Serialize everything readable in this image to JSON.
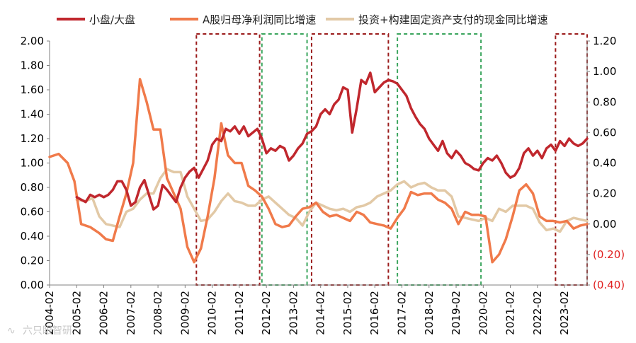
{
  "chart_data": {
    "type": "line",
    "title": "",
    "xlabel": "",
    "ylabel_left": "",
    "ylabel_right": "",
    "x_start": "2004-02",
    "x_end": "2023-12",
    "x_tick_labels": [
      "2004-02",
      "2005-02",
      "2006-02",
      "2007-02",
      "2008-02",
      "2009-02",
      "2010-02",
      "2011-02",
      "2012-02",
      "2013-02",
      "2014-02",
      "2015-02",
      "2016-02",
      "2017-02",
      "2018-02",
      "2019-02",
      "2020-02",
      "2021-02",
      "2022-02",
      "2023-02"
    ],
    "ylim_left": [
      0,
      2.0
    ],
    "yticks_left": [
      "0.00",
      "0.20",
      "0.40",
      "0.60",
      "0.80",
      "1.00",
      "1.20",
      "1.40",
      "1.60",
      "1.80",
      "2.00"
    ],
    "ylim_right": [
      -0.4,
      1.2
    ],
    "yticks_right": [
      "(0.40)",
      "(0.20)",
      "0.00",
      "0.20",
      "0.40",
      "0.60",
      "0.80",
      "1.00",
      "1.20"
    ],
    "legend_position": "top",
    "grid": false,
    "series": [
      {
        "name": "小盘/大盘",
        "axis": "left",
        "color": "#c0272d",
        "points": [
          [
            "2005-02",
            0.72
          ],
          [
            "2005-04",
            0.7
          ],
          [
            "2005-06",
            0.68
          ],
          [
            "2005-08",
            0.74
          ],
          [
            "2005-10",
            0.72
          ],
          [
            "2005-12",
            0.74
          ],
          [
            "2006-02",
            0.72
          ],
          [
            "2006-04",
            0.74
          ],
          [
            "2006-06",
            0.78
          ],
          [
            "2006-08",
            0.85
          ],
          [
            "2006-10",
            0.85
          ],
          [
            "2006-12",
            0.78
          ],
          [
            "2007-02",
            0.65
          ],
          [
            "2007-04",
            0.68
          ],
          [
            "2007-06",
            0.8
          ],
          [
            "2007-08",
            0.86
          ],
          [
            "2007-10",
            0.74
          ],
          [
            "2007-12",
            0.62
          ],
          [
            "2008-02",
            0.65
          ],
          [
            "2008-04",
            0.82
          ],
          [
            "2008-06",
            0.78
          ],
          [
            "2008-08",
            0.73
          ],
          [
            "2008-10",
            0.68
          ],
          [
            "2008-12",
            0.8
          ],
          [
            "2009-02",
            0.88
          ],
          [
            "2009-04",
            0.93
          ],
          [
            "2009-06",
            0.96
          ],
          [
            "2009-08",
            0.88
          ],
          [
            "2009-10",
            0.95
          ],
          [
            "2009-12",
            1.02
          ],
          [
            "2010-02",
            1.15
          ],
          [
            "2010-04",
            1.2
          ],
          [
            "2010-06",
            1.18
          ],
          [
            "2010-08",
            1.28
          ],
          [
            "2010-10",
            1.26
          ],
          [
            "2010-12",
            1.3
          ],
          [
            "2011-02",
            1.24
          ],
          [
            "2011-04",
            1.3
          ],
          [
            "2011-06",
            1.22
          ],
          [
            "2011-08",
            1.25
          ],
          [
            "2011-10",
            1.28
          ],
          [
            "2011-12",
            1.2
          ],
          [
            "2012-02",
            1.08
          ],
          [
            "2012-04",
            1.12
          ],
          [
            "2012-06",
            1.1
          ],
          [
            "2012-08",
            1.14
          ],
          [
            "2012-10",
            1.12
          ],
          [
            "2012-12",
            1.02
          ],
          [
            "2013-02",
            1.06
          ],
          [
            "2013-04",
            1.12
          ],
          [
            "2013-06",
            1.16
          ],
          [
            "2013-08",
            1.24
          ],
          [
            "2013-10",
            1.26
          ],
          [
            "2013-12",
            1.3
          ],
          [
            "2014-02",
            1.4
          ],
          [
            "2014-04",
            1.44
          ],
          [
            "2014-06",
            1.4
          ],
          [
            "2014-08",
            1.48
          ],
          [
            "2014-10",
            1.52
          ],
          [
            "2014-12",
            1.62
          ],
          [
            "2015-02",
            1.6
          ],
          [
            "2015-04",
            1.25
          ],
          [
            "2015-06",
            1.45
          ],
          [
            "2015-08",
            1.68
          ],
          [
            "2015-10",
            1.65
          ],
          [
            "2015-12",
            1.74
          ],
          [
            "2016-02",
            1.58
          ],
          [
            "2016-04",
            1.62
          ],
          [
            "2016-06",
            1.66
          ],
          [
            "2016-08",
            1.68
          ],
          [
            "2016-10",
            1.67
          ],
          [
            "2016-12",
            1.65
          ],
          [
            "2017-02",
            1.6
          ],
          [
            "2017-04",
            1.55
          ],
          [
            "2017-06",
            1.45
          ],
          [
            "2017-08",
            1.38
          ],
          [
            "2017-10",
            1.32
          ],
          [
            "2017-12",
            1.28
          ],
          [
            "2018-02",
            1.2
          ],
          [
            "2018-04",
            1.15
          ],
          [
            "2018-06",
            1.1
          ],
          [
            "2018-08",
            1.18
          ],
          [
            "2018-10",
            1.08
          ],
          [
            "2018-12",
            1.04
          ],
          [
            "2019-02",
            1.1
          ],
          [
            "2019-04",
            1.06
          ],
          [
            "2019-06",
            1.0
          ],
          [
            "2019-08",
            0.98
          ],
          [
            "2019-10",
            0.95
          ],
          [
            "2019-12",
            0.94
          ],
          [
            "2020-02",
            1.0
          ],
          [
            "2020-04",
            1.04
          ],
          [
            "2020-06",
            1.02
          ],
          [
            "2020-08",
            1.06
          ],
          [
            "2020-10",
            1.0
          ],
          [
            "2020-12",
            0.92
          ],
          [
            "2021-02",
            0.88
          ],
          [
            "2021-04",
            0.9
          ],
          [
            "2021-06",
            0.96
          ],
          [
            "2021-08",
            1.08
          ],
          [
            "2021-10",
            1.12
          ],
          [
            "2021-12",
            1.06
          ],
          [
            "2022-02",
            1.1
          ],
          [
            "2022-04",
            1.04
          ],
          [
            "2022-06",
            1.12
          ],
          [
            "2022-08",
            1.15
          ],
          [
            "2022-10",
            1.1
          ],
          [
            "2022-12",
            1.18
          ],
          [
            "2023-02",
            1.14
          ],
          [
            "2023-04",
            1.2
          ],
          [
            "2023-06",
            1.16
          ],
          [
            "2023-08",
            1.14
          ],
          [
            "2023-10",
            1.16
          ],
          [
            "2023-12",
            1.2
          ]
        ]
      },
      {
        "name": "A股归母净利润同比增速",
        "axis": "right",
        "color": "#f07a4a",
        "points": [
          [
            "2004-02",
            0.44
          ],
          [
            "2004-06",
            0.46
          ],
          [
            "2004-10",
            0.4
          ],
          [
            "2005-01",
            0.28
          ],
          [
            "2005-04",
            0.0
          ],
          [
            "2005-08",
            -0.02
          ],
          [
            "2005-12",
            -0.06
          ],
          [
            "2006-03",
            -0.1
          ],
          [
            "2006-06",
            -0.11
          ],
          [
            "2006-09",
            0.05
          ],
          [
            "2006-12",
            0.2
          ],
          [
            "2007-03",
            0.4
          ],
          [
            "2007-06",
            0.95
          ],
          [
            "2007-09",
            0.8
          ],
          [
            "2007-12",
            0.62
          ],
          [
            "2008-03",
            0.62
          ],
          [
            "2008-06",
            0.3
          ],
          [
            "2008-09",
            0.2
          ],
          [
            "2008-12",
            0.1
          ],
          [
            "2009-03",
            -0.15
          ],
          [
            "2009-06",
            -0.25
          ],
          [
            "2009-09",
            -0.16
          ],
          [
            "2009-12",
            0.05
          ],
          [
            "2010-03",
            0.3
          ],
          [
            "2010-06",
            0.66
          ],
          [
            "2010-09",
            0.45
          ],
          [
            "2010-12",
            0.4
          ],
          [
            "2011-03",
            0.4
          ],
          [
            "2011-06",
            0.25
          ],
          [
            "2011-09",
            0.22
          ],
          [
            "2011-12",
            0.18
          ],
          [
            "2012-03",
            0.1
          ],
          [
            "2012-06",
            0.0
          ],
          [
            "2012-09",
            -0.02
          ],
          [
            "2012-12",
            -0.01
          ],
          [
            "2013-03",
            0.05
          ],
          [
            "2013-06",
            0.1
          ],
          [
            "2013-09",
            0.11
          ],
          [
            "2013-12",
            0.14
          ],
          [
            "2014-03",
            0.08
          ],
          [
            "2014-06",
            0.05
          ],
          [
            "2014-09",
            0.06
          ],
          [
            "2014-12",
            0.04
          ],
          [
            "2015-03",
            0.02
          ],
          [
            "2015-06",
            0.08
          ],
          [
            "2015-09",
            0.06
          ],
          [
            "2015-12",
            0.01
          ],
          [
            "2016-03",
            0.0
          ],
          [
            "2016-06",
            -0.01
          ],
          [
            "2016-09",
            -0.03
          ],
          [
            "2016-12",
            0.04
          ],
          [
            "2017-03",
            0.1
          ],
          [
            "2017-06",
            0.21
          ],
          [
            "2017-09",
            0.19
          ],
          [
            "2017-12",
            0.2
          ],
          [
            "2018-03",
            0.2
          ],
          [
            "2018-06",
            0.16
          ],
          [
            "2018-09",
            0.14
          ],
          [
            "2018-12",
            0.1
          ],
          [
            "2019-03",
            0.0
          ],
          [
            "2019-06",
            0.08
          ],
          [
            "2019-09",
            0.06
          ],
          [
            "2019-12",
            0.06
          ],
          [
            "2020-03",
            0.05
          ],
          [
            "2020-06",
            -0.25
          ],
          [
            "2020-09",
            -0.2
          ],
          [
            "2020-12",
            -0.1
          ],
          [
            "2021-03",
            0.05
          ],
          [
            "2021-06",
            0.22
          ],
          [
            "2021-09",
            0.26
          ],
          [
            "2021-12",
            0.2
          ],
          [
            "2022-03",
            0.05
          ],
          [
            "2022-06",
            0.02
          ],
          [
            "2022-09",
            0.02
          ],
          [
            "2022-12",
            0.01
          ],
          [
            "2023-03",
            0.02
          ],
          [
            "2023-06",
            -0.03
          ],
          [
            "2023-09",
            -0.01
          ],
          [
            "2023-12",
            0.0
          ]
        ]
      },
      {
        "name": "投资+构建固定资产支付的现金同比增速",
        "axis": "right",
        "color": "#e2c9a6",
        "points": [
          [
            "2005-02",
            0.16
          ],
          [
            "2005-06",
            0.15
          ],
          [
            "2005-09",
            0.17
          ],
          [
            "2005-12",
            0.05
          ],
          [
            "2006-03",
            0.0
          ],
          [
            "2006-06",
            -0.01
          ],
          [
            "2006-09",
            -0.02
          ],
          [
            "2006-12",
            0.08
          ],
          [
            "2007-03",
            0.1
          ],
          [
            "2007-06",
            0.16
          ],
          [
            "2007-09",
            0.2
          ],
          [
            "2007-12",
            0.2
          ],
          [
            "2008-03",
            0.3
          ],
          [
            "2008-06",
            0.36
          ],
          [
            "2008-09",
            0.34
          ],
          [
            "2008-12",
            0.34
          ],
          [
            "2009-03",
            0.18
          ],
          [
            "2009-06",
            0.1
          ],
          [
            "2009-09",
            0.02
          ],
          [
            "2009-12",
            0.03
          ],
          [
            "2010-03",
            0.08
          ],
          [
            "2010-06",
            0.15
          ],
          [
            "2010-09",
            0.2
          ],
          [
            "2010-12",
            0.15
          ],
          [
            "2011-03",
            0.14
          ],
          [
            "2011-06",
            0.12
          ],
          [
            "2011-09",
            0.12
          ],
          [
            "2011-12",
            0.16
          ],
          [
            "2012-03",
            0.18
          ],
          [
            "2012-06",
            0.14
          ],
          [
            "2012-09",
            0.1
          ],
          [
            "2012-12",
            0.06
          ],
          [
            "2013-03",
            0.04
          ],
          [
            "2013-06",
            -0.01
          ],
          [
            "2013-09",
            0.08
          ],
          [
            "2013-12",
            0.14
          ],
          [
            "2014-03",
            0.12
          ],
          [
            "2014-06",
            0.1
          ],
          [
            "2014-09",
            0.09
          ],
          [
            "2014-12",
            0.1
          ],
          [
            "2015-03",
            0.08
          ],
          [
            "2015-06",
            0.11
          ],
          [
            "2015-09",
            0.12
          ],
          [
            "2015-12",
            0.14
          ],
          [
            "2016-03",
            0.18
          ],
          [
            "2016-06",
            0.2
          ],
          [
            "2016-09",
            0.22
          ],
          [
            "2016-12",
            0.26
          ],
          [
            "2017-03",
            0.28
          ],
          [
            "2017-06",
            0.24
          ],
          [
            "2017-09",
            0.26
          ],
          [
            "2017-12",
            0.27
          ],
          [
            "2018-03",
            0.24
          ],
          [
            "2018-06",
            0.22
          ],
          [
            "2018-09",
            0.22
          ],
          [
            "2018-12",
            0.18
          ],
          [
            "2019-03",
            0.05
          ],
          [
            "2019-06",
            0.04
          ],
          [
            "2019-09",
            0.03
          ],
          [
            "2019-12",
            0.02
          ],
          [
            "2020-03",
            0.04
          ],
          [
            "2020-06",
            0.02
          ],
          [
            "2020-09",
            0.1
          ],
          [
            "2020-12",
            0.08
          ],
          [
            "2021-03",
            0.12
          ],
          [
            "2021-06",
            0.12
          ],
          [
            "2021-09",
            0.12
          ],
          [
            "2021-12",
            0.1
          ],
          [
            "2022-03",
            0.01
          ],
          [
            "2022-06",
            -0.04
          ],
          [
            "2022-09",
            -0.03
          ],
          [
            "2022-12",
            -0.05
          ],
          [
            "2023-03",
            0.02
          ],
          [
            "2023-06",
            0.04
          ],
          [
            "2023-09",
            0.03
          ],
          [
            "2023-12",
            0.02
          ]
        ]
      }
    ],
    "highlight_periods": [
      {
        "from": "2009-07",
        "to": "2011-11",
        "style": "dashed",
        "color": "#9b1c1c"
      },
      {
        "from": "2011-12",
        "to": "2013-08",
        "style": "dashed",
        "color": "#3aa55d"
      },
      {
        "from": "2013-10",
        "to": "2016-08",
        "style": "dashed",
        "color": "#9b1c1c"
      },
      {
        "from": "2016-12",
        "to": "2020-01",
        "style": "dashed",
        "color": "#3aa55d"
      },
      {
        "from": "2022-10",
        "to": "2023-12",
        "style": "dashed",
        "color": "#9b1c1c"
      }
    ]
  },
  "watermark": {
    "text": "六只眼智研"
  },
  "colors": {
    "negative_tick": "#e02020",
    "axis": "#808080"
  }
}
